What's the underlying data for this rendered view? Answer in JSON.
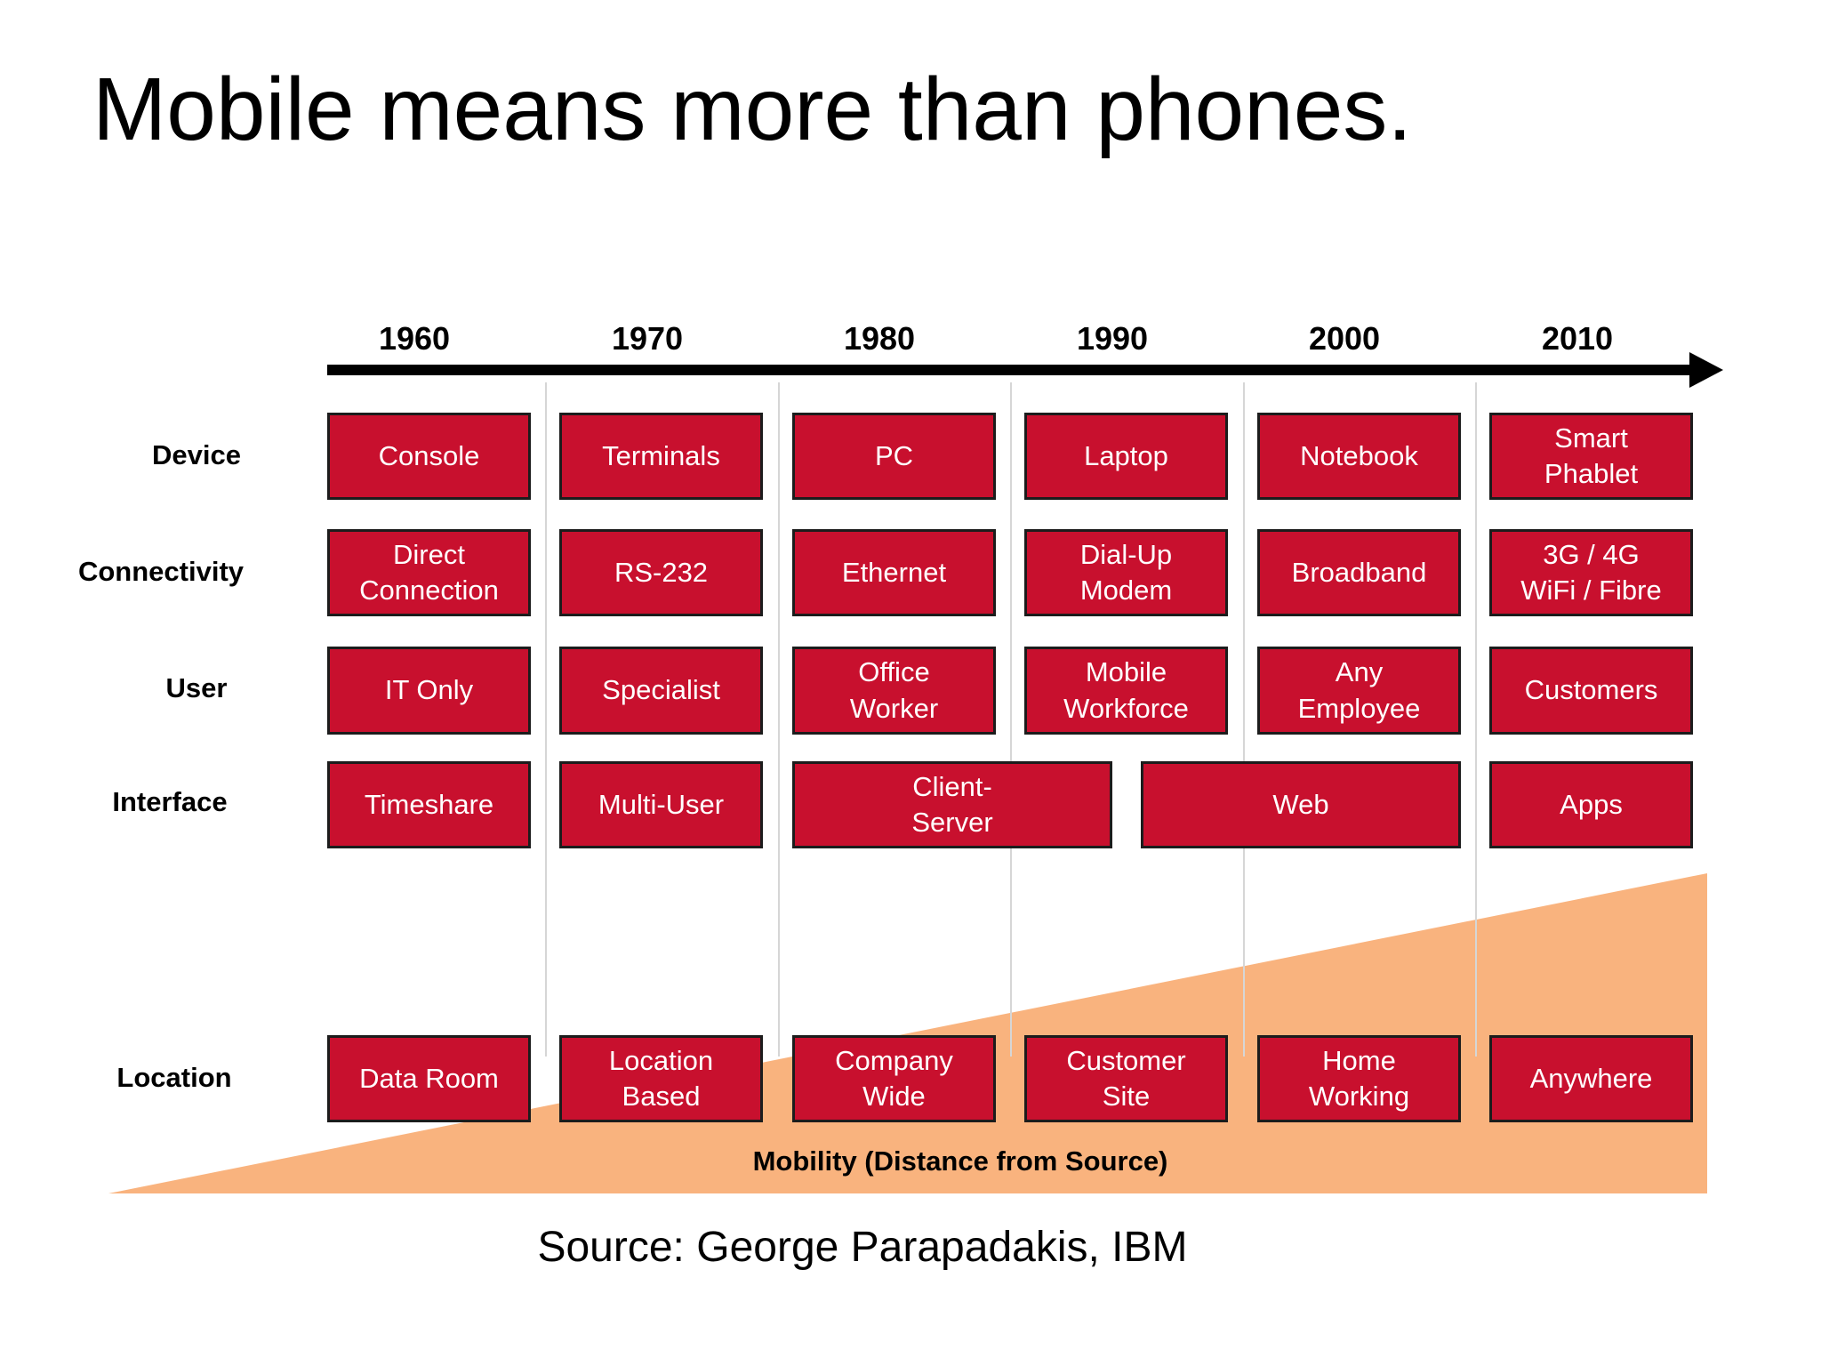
{
  "title": "Mobile means more than phones.",
  "years": [
    "1960",
    "1970",
    "1980",
    "1990",
    "2000",
    "2010"
  ],
  "row_labels": {
    "device": "Device",
    "connectivity": "Connectivity",
    "user": "User",
    "interface": "Interface",
    "location": "Location"
  },
  "rows": {
    "device": [
      "Console",
      "Terminals",
      "PC",
      "Laptop",
      "Notebook",
      "Smart\nPhablet"
    ],
    "connectivity": [
      "Direct\nConnection",
      "RS-232",
      "Ethernet",
      "Dial-Up\nModem",
      "Broadband",
      "3G / 4G\nWiFi / Fibre"
    ],
    "user": [
      "IT Only",
      "Specialist",
      "Office\nWorker",
      "Mobile\nWorkforce",
      "Any\nEmployee",
      "Customers"
    ],
    "interface": [
      "Timeshare",
      "Multi-User",
      "Client-\nServer",
      "Web",
      "Apps"
    ],
    "location": [
      "Data Room",
      "Location\nBased",
      "Company\nWide",
      "Customer\nSite",
      "Home\nWorking",
      "Anywhere"
    ]
  },
  "mobility_label": "Mobility (Distance from Source)",
  "source": "Source: George Parapadakis, IBM",
  "colors": {
    "box_fill": "#c8102e",
    "box_border": "#1c1c1c",
    "wedge": "#f9b37e",
    "arrow": "#000000",
    "divider": "#d6d6d6"
  }
}
